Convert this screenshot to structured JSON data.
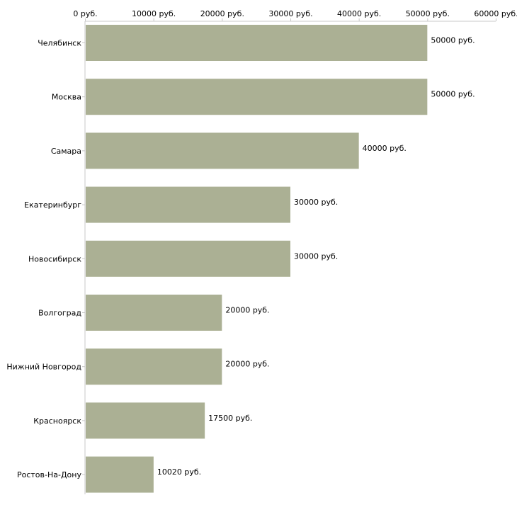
{
  "chart_data": {
    "type": "bar",
    "orientation": "horizontal",
    "title": "",
    "xlabel": "",
    "ylabel": "",
    "unit_suffix": " руб.",
    "xlim": [
      0,
      60000
    ],
    "xticks": [
      0,
      10000,
      20000,
      30000,
      40000,
      50000,
      60000
    ],
    "xtick_labels": [
      "0 руб.",
      "10000 руб.",
      "20000 руб.",
      "30000 руб.",
      "40000 руб.",
      "50000 руб.",
      "60000 руб."
    ],
    "x_axis_position": "top",
    "grid": false,
    "bar_color": "#abb094",
    "categories": [
      "Челябинск",
      "Москва",
      "Самара",
      "Екатеринбург",
      "Новосибирск",
      "Волгоград",
      "Нижний Новгород",
      "Красноярск",
      "Ростов-На-Дону"
    ],
    "values": [
      50000,
      50000,
      40000,
      30000,
      30000,
      20000,
      20000,
      17500,
      10020
    ],
    "value_labels": [
      "50000 руб.",
      "50000 руб.",
      "40000 руб.",
      "30000 руб.",
      "30000 руб.",
      "20000 руб.",
      "20000 руб.",
      "17500 руб.",
      "10020 руб."
    ]
  }
}
